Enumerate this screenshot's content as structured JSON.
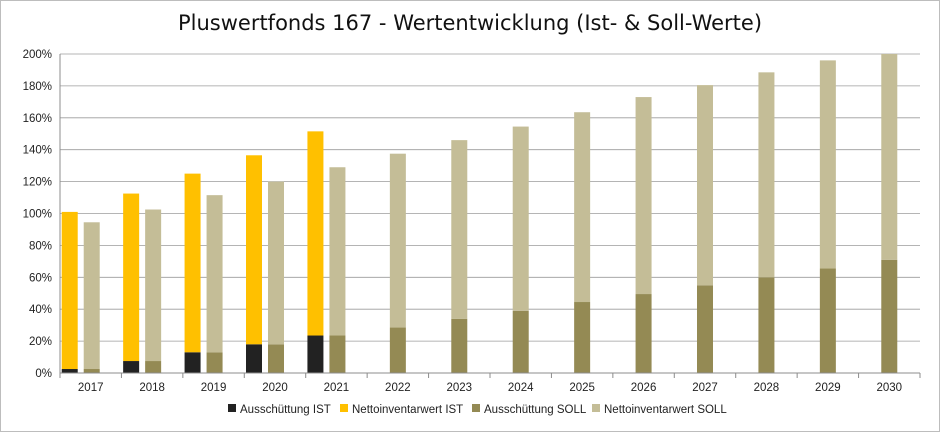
{
  "chart_data": {
    "type": "bar",
    "title": "Pluswertfonds 167 - Wertentwicklung (Ist- & Soll-Werte)",
    "xlabel": "",
    "ylabel": "",
    "ylim": [
      0,
      200
    ],
    "y_ticks": [
      "0%",
      "20%",
      "40%",
      "60%",
      "80%",
      "100%",
      "120%",
      "140%",
      "160%",
      "180%",
      "200%"
    ],
    "categories": [
      "2017",
      "2018",
      "2019",
      "2020",
      "2021",
      "2022",
      "2023",
      "2024",
      "2025",
      "2026",
      "2027",
      "2028",
      "2029",
      "2030"
    ],
    "grid": true,
    "legend_position": "bottom",
    "stacks": [
      {
        "stack": "IST",
        "series": [
          {
            "name": "Ausschüttung IST",
            "color": "#222222",
            "values": [
              2.5,
              7.5,
              13,
              18,
              23.5,
              null,
              null,
              null,
              null,
              null,
              null,
              null,
              null,
              null
            ]
          },
          {
            "name": "Nettoinventarwert IST",
            "color": "#FFC000",
            "values": [
              98.5,
              105,
              112,
              118.5,
              128,
              null,
              null,
              null,
              null,
              null,
              null,
              null,
              null,
              null
            ]
          }
        ]
      },
      {
        "stack": "SOLL",
        "series": [
          {
            "name": "Ausschüttung SOLL",
            "color": "#948A54",
            "values": [
              2.5,
              7.5,
              13,
              18,
              23.5,
              28.5,
              34,
              39,
              44.5,
              49.5,
              55,
              60,
              65.5,
              71
            ]
          },
          {
            "name": "Nettoinventarwert SOLL",
            "color": "#C4BD97",
            "values": [
              92,
              95,
              98.5,
              102,
              105.5,
              109,
              112,
              115.5,
              119,
              123.5,
              125.5,
              128.5,
              130.5,
              129
            ]
          }
        ]
      }
    ]
  }
}
